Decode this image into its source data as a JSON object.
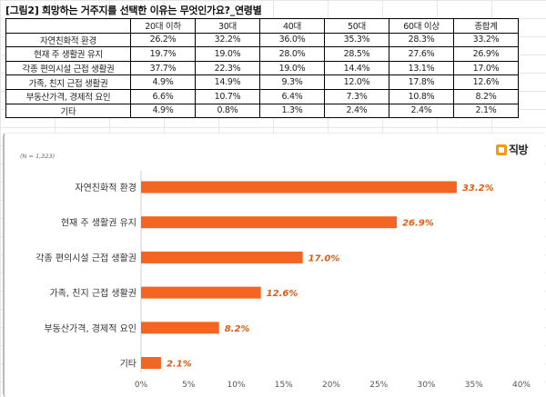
{
  "figure_title": "[그림2] 희망하는 거주지를 선택한 이유는 무엇인가요?_연령별",
  "table": {
    "corner": "",
    "columns": [
      "20대 이하",
      "30대",
      "40대",
      "50대",
      "60대 이상",
      "종합계"
    ],
    "rows": [
      {
        "label": "자연친화적 환경",
        "cells": [
          "26.2%",
          "32.2%",
          "36.0%",
          "35.3%",
          "28.3%",
          "33.2%"
        ]
      },
      {
        "label": "현재 주 생활권 유지",
        "cells": [
          "19.7%",
          "19.0%",
          "28.0%",
          "28.5%",
          "27.6%",
          "26.9%"
        ]
      },
      {
        "label": "각종 편의시설 근접 생활권",
        "cells": [
          "37.7%",
          "22.3%",
          "19.0%",
          "14.4%",
          "13.1%",
          "17.0%"
        ]
      },
      {
        "label": "가족, 친지 근접 생활권",
        "cells": [
          "4.9%",
          "14.9%",
          "9.3%",
          "12.0%",
          "17.8%",
          "12.6%"
        ]
      },
      {
        "label": "부동산가격, 경제적 요인",
        "cells": [
          "6.6%",
          "10.7%",
          "6.4%",
          "7.3%",
          "10.8%",
          "8.2%"
        ]
      },
      {
        "label": "기타",
        "cells": [
          "4.9%",
          "0.8%",
          "1.3%",
          "2.4%",
          "2.4%",
          "2.1%"
        ]
      }
    ]
  },
  "chart_note": "(N = 1,323)",
  "logo": {
    "text": "직방",
    "color": "#f39c12"
  },
  "chart_data": {
    "type": "bar",
    "orientation": "horizontal",
    "categories": [
      "자연친화적 환경",
      "현재 주 생활권 유지",
      "각종 편의시설 근접 생활권",
      "가족, 친지 근접 생활권",
      "부동산가격, 경제적 요인",
      "기타"
    ],
    "values": [
      33.2,
      26.9,
      17.0,
      12.6,
      8.2,
      2.1
    ],
    "data_labels": [
      "33.2%",
      "26.9%",
      "17.0%",
      "12.6%",
      "8.2%",
      "2.1%"
    ],
    "xlim": [
      0,
      40
    ],
    "x_ticks": [
      0,
      5,
      10,
      15,
      20,
      25,
      30,
      35,
      40
    ],
    "x_tick_labels": [
      "0%",
      "5%",
      "10%",
      "15%",
      "20%",
      "25%",
      "30%",
      "35%",
      "40%"
    ],
    "bar_color": "#f26522",
    "label_color": "#e25a14",
    "grid": false,
    "legend": "none"
  }
}
